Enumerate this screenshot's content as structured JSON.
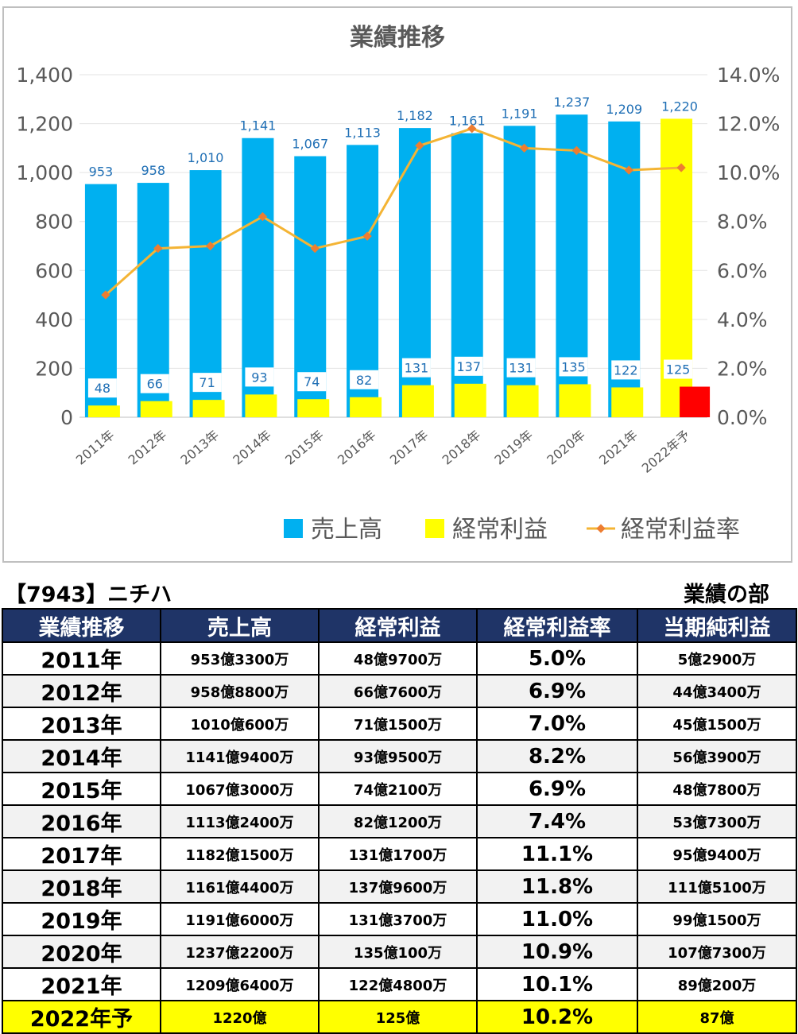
{
  "chart_data": {
    "type": "bar",
    "title": "業績推移",
    "categories": [
      "2011年",
      "2012年",
      "2013年",
      "2014年",
      "2015年",
      "2016年",
      "2017年",
      "2018年",
      "2019年",
      "2020年",
      "2021年",
      "2022年予"
    ],
    "series": [
      {
        "name": "売上高",
        "type": "bar",
        "axis": "left",
        "color": "#00b0f0",
        "values": [
          953,
          958,
          1010,
          1141,
          1067,
          1113,
          1182,
          1161,
          1191,
          1237,
          1209,
          1220
        ],
        "labels": [
          "953",
          "958",
          "1,010",
          "1,141",
          "1,067",
          "1,113",
          "1,182",
          "1,161",
          "1,191",
          "1,237",
          "1,209",
          "1,220"
        ],
        "forecast_color": "#ffff00"
      },
      {
        "name": "経常利益",
        "type": "bar",
        "axis": "left",
        "color": "#ffff00",
        "values": [
          48,
          66,
          71,
          93,
          74,
          82,
          131,
          137,
          131,
          135,
          122,
          125
        ],
        "labels": [
          "48",
          "66",
          "71",
          "93",
          "74",
          "82",
          "131",
          "137",
          "131",
          "135",
          "122",
          "125"
        ],
        "forecast_color": "#ff0000"
      },
      {
        "name": "経常利益率",
        "type": "line",
        "axis": "right",
        "color": "#f4b434",
        "marker_color": "#ed7d31",
        "values": [
          5.0,
          6.9,
          7.0,
          8.2,
          6.9,
          7.4,
          11.1,
          11.8,
          11.0,
          10.9,
          10.1,
          10.2
        ]
      }
    ],
    "y_left": {
      "min": 0,
      "max": 1400,
      "step": 200,
      "ticks": [
        "0",
        "200",
        "400",
        "600",
        "800",
        "1,000",
        "1,200",
        "1,400"
      ]
    },
    "y_right": {
      "min": 0,
      "max": 14,
      "step": 2,
      "ticks": [
        "0.0%",
        "2.0%",
        "4.0%",
        "6.0%",
        "8.0%",
        "10.0%",
        "12.0%",
        "14.0%"
      ]
    },
    "grid": true,
    "legend_position": "bottom-right"
  },
  "table": {
    "caption_left": "【7943】ニチハ",
    "caption_right": "業績の部",
    "headers": [
      "業績推移",
      "売上高",
      "経常利益",
      "経常利益率",
      "当期純利益"
    ],
    "rows": [
      [
        "2011年",
        "953億3300万",
        "48億9700万",
        "5.0%",
        "5億2900万"
      ],
      [
        "2012年",
        "958億8800万",
        "66億7600万",
        "6.9%",
        "44億3400万"
      ],
      [
        "2013年",
        "1010億600万",
        "71億1500万",
        "7.0%",
        "45億1500万"
      ],
      [
        "2014年",
        "1141億9400万",
        "93億9500万",
        "8.2%",
        "56億3900万"
      ],
      [
        "2015年",
        "1067億3000万",
        "74億2100万",
        "6.9%",
        "48億7800万"
      ],
      [
        "2016年",
        "1113億2400万",
        "82億1200万",
        "7.4%",
        "53億7300万"
      ],
      [
        "2017年",
        "1182億1500万",
        "131億1700万",
        "11.1%",
        "95億9400万"
      ],
      [
        "2018年",
        "1161億4400万",
        "137億9600万",
        "11.8%",
        "111億5100万"
      ],
      [
        "2019年",
        "1191億6000万",
        "131億3700万",
        "11.0%",
        "99億1500万"
      ],
      [
        "2020年",
        "1237億2200万",
        "135億100万",
        "10.9%",
        "107億7300万"
      ],
      [
        "2021年",
        "1209億6400万",
        "122億4800万",
        "10.1%",
        "89億200万"
      ],
      [
        "2022年予",
        "1220億",
        "125億",
        "10.2%",
        "87億"
      ]
    ]
  }
}
